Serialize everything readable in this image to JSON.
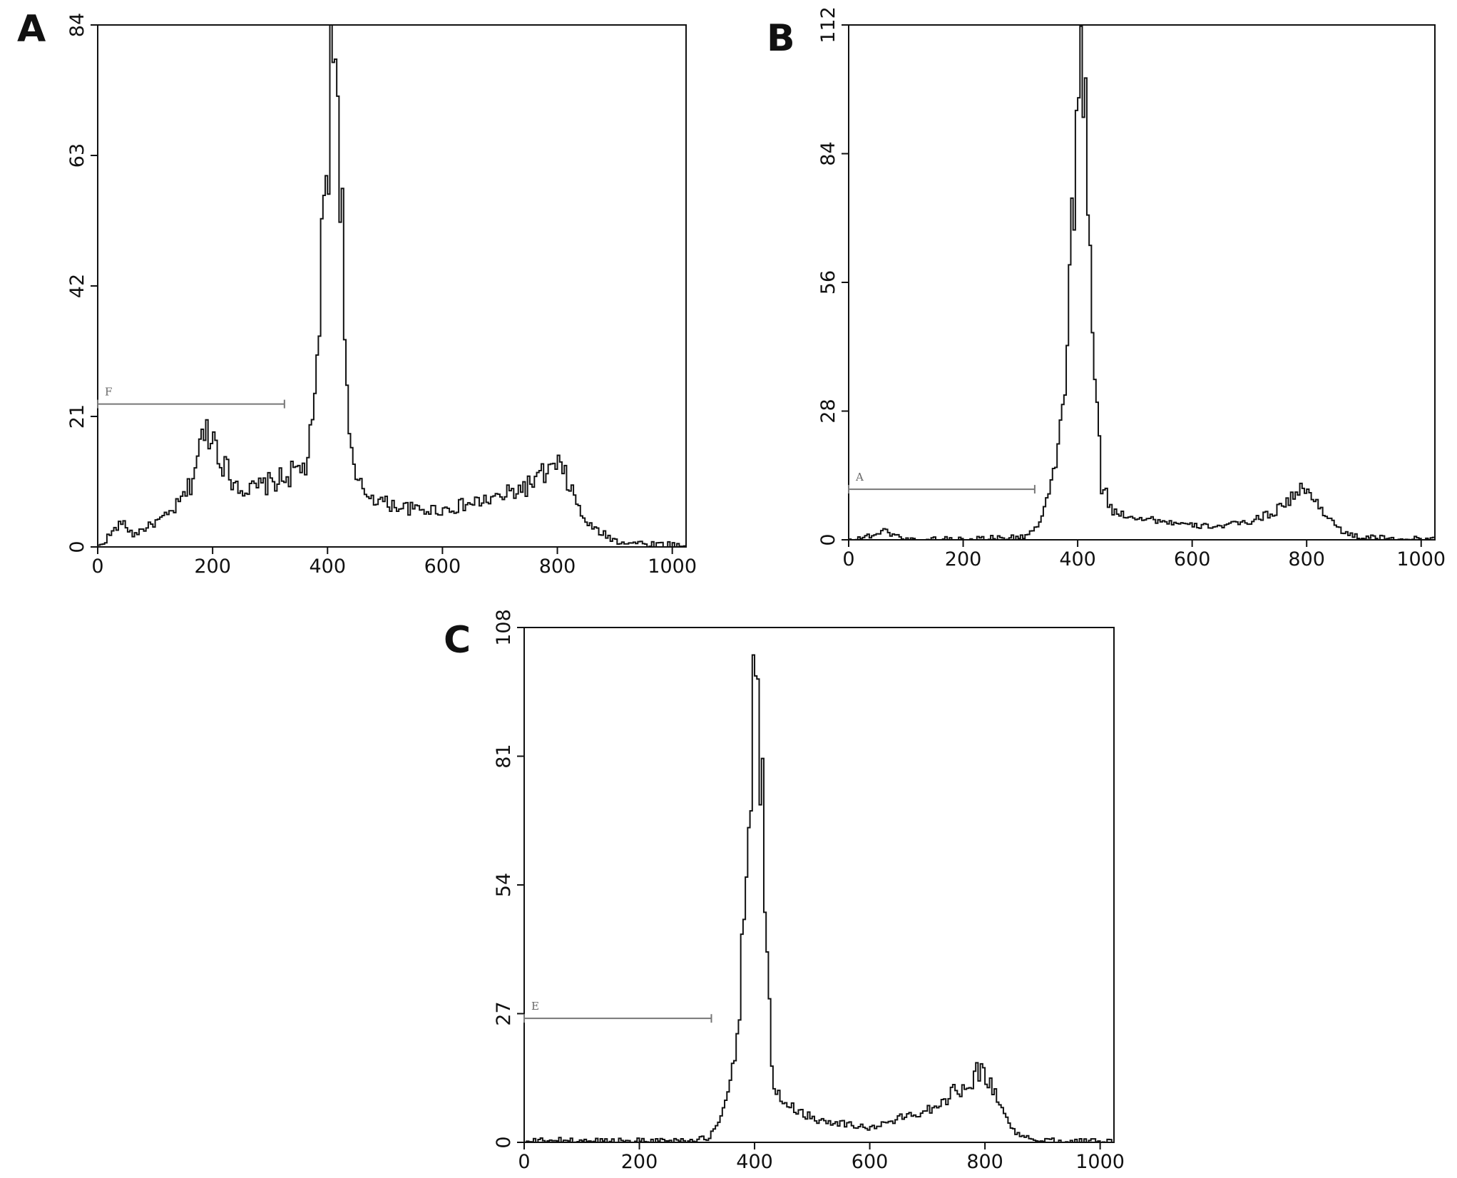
{
  "figure": {
    "panels": [
      {
        "letter": "A"
      },
      {
        "letter": "B"
      },
      {
        "letter": "C"
      }
    ]
  },
  "chart_data": [
    {
      "type": "line",
      "panel": "A",
      "xlim": [
        0,
        1024
      ],
      "ylim": [
        0,
        84
      ],
      "xticks": [
        0,
        200,
        400,
        600,
        800,
        1000
      ],
      "yticks": [
        0,
        21,
        42,
        63,
        84
      ],
      "gate": {
        "label": "F",
        "x0": 0,
        "x1": 325,
        "y": 23
      },
      "series": [
        {
          "x": [
            0,
            40,
            60,
            80,
            100,
            120,
            140,
            160,
            175,
            190,
            200,
            210,
            230,
            260,
            290,
            320,
            340,
            360,
            375,
            385,
            395,
            405,
            410,
            415,
            425,
            435,
            445,
            460,
            500,
            550,
            600,
            650,
            700,
            750,
            780,
            800,
            820,
            840,
            860,
            880,
            900,
            950,
            1000,
            1024
          ],
          "y": [
            0,
            4,
            2,
            3,
            4,
            5,
            7,
            10,
            16,
            19,
            18,
            15,
            11,
            9,
            10,
            11,
            12,
            13,
            20,
            40,
            60,
            75,
            82,
            78,
            48,
            18,
            11,
            9,
            7,
            6,
            6,
            7,
            8,
            10,
            12,
            13,
            10,
            5,
            3,
            2,
            1,
            0.5,
            0.3,
            0
          ]
        }
      ]
    },
    {
      "type": "line",
      "panel": "B",
      "xlim": [
        0,
        1024
      ],
      "ylim": [
        0,
        112
      ],
      "xticks": [
        0,
        200,
        400,
        600,
        800,
        1000
      ],
      "yticks": [
        0,
        28,
        56,
        84,
        112
      ],
      "gate": {
        "label": "A",
        "x0": 0,
        "x1": 325,
        "y": 11
      },
      "series": [
        {
          "x": [
            0,
            40,
            60,
            80,
            100,
            300,
            330,
            350,
            370,
            385,
            395,
            400,
            405,
            415,
            425,
            440,
            460,
            500,
            550,
            600,
            650,
            700,
            740,
            770,
            790,
            810,
            830,
            850,
            870,
            900,
            950,
            1024
          ],
          "y": [
            0,
            1,
            2,
            1,
            0,
            0.5,
            3,
            10,
            25,
            55,
            85,
            98,
            100,
            85,
            40,
            12,
            6,
            5,
            4,
            3,
            3,
            4,
            6,
            9,
            11,
            9,
            6,
            3,
            1,
            0.5,
            0.3,
            0
          ]
        }
      ]
    },
    {
      "type": "line",
      "panel": "C",
      "xlim": [
        0,
        1024
      ],
      "ylim": [
        0,
        108
      ],
      "xticks": [
        0,
        200,
        400,
        600,
        800,
        1000
      ],
      "yticks": [
        0,
        27,
        54,
        81,
        108
      ],
      "gate": {
        "label": "E",
        "x0": 0,
        "x1": 325,
        "y": 26
      },
      "series": [
        {
          "x": [
            0,
            40,
            100,
            300,
            320,
            340,
            360,
            375,
            385,
            395,
            400,
            405,
            412,
            420,
            430,
            445,
            470,
            500,
            550,
            600,
            650,
            700,
            740,
            770,
            790,
            805,
            820,
            840,
            860,
            900,
            950,
            1000,
            1024
          ],
          "y": [
            0,
            0.5,
            0.3,
            0.5,
            1,
            5,
            15,
            35,
            65,
            88,
            95,
            92,
            70,
            35,
            12,
            9,
            7,
            5,
            4,
            3,
            5,
            7,
            10,
            13,
            15,
            13,
            9,
            4,
            1,
            0.5,
            0.3,
            0.2,
            0
          ]
        }
      ]
    }
  ]
}
